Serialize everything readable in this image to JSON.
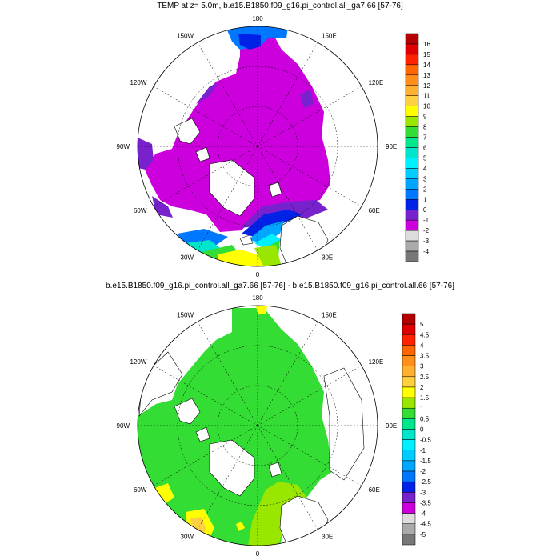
{
  "panels": [
    {
      "title": "TEMP at z=   5.0m, b.e15.B1850.f09_g16.pi_control.all_ga7.66 [57-76]",
      "lon_labels": [
        "180",
        "150E",
        "120E",
        "90E",
        "60E",
        "30E",
        "0",
        "30W",
        "60W",
        "90W",
        "120W",
        "150W"
      ],
      "colorbar": {
        "labels": [
          "16",
          "15",
          "14",
          "13",
          "12",
          "11",
          "10",
          "9",
          "8",
          "7",
          "6",
          "5",
          "4",
          "3",
          "2",
          "1",
          "0",
          "-1",
          "-2",
          "-3",
          "-4"
        ],
        "colors": [
          "#b40000",
          "#de0000",
          "#ff2200",
          "#ff6600",
          "#ff8f1a",
          "#ffb030",
          "#ffd040",
          "#ffff00",
          "#99e600",
          "#33dd33",
          "#00e68c",
          "#00e6cc",
          "#00f0ff",
          "#00ccff",
          "#00a6ff",
          "#0077ff",
          "#0022e6",
          "#7722cc",
          "#cc00dd",
          "#dddddd",
          "#aaaaaa",
          "#777777"
        ]
      }
    },
    {
      "title": "b.e15.B1850.f09_g16.pi_control.all_ga7.66 [57-76] - b.e15.B1850.f09_g16.pi_control.all.66 [57-76]",
      "lon_labels": [
        "180",
        "150E",
        "120E",
        "90E",
        "60E",
        "30E",
        "0",
        "30W",
        "60W",
        "90W",
        "120W",
        "150W"
      ],
      "colorbar": {
        "labels": [
          "5",
          "4.5",
          "4",
          "3.5",
          "3",
          "2.5",
          "2",
          "1.5",
          "1",
          "0.5",
          "0",
          "-0.5",
          "-1",
          "-1.5",
          "-2",
          "-2.5",
          "-3",
          "-3.5",
          "-4",
          "-4.5",
          "-5"
        ],
        "colors": [
          "#b40000",
          "#de0000",
          "#ff2200",
          "#ff6600",
          "#ff8f1a",
          "#ffb030",
          "#ffd040",
          "#ffff00",
          "#99e600",
          "#33dd33",
          "#00e68c",
          "#00e6cc",
          "#00f0ff",
          "#00ccff",
          "#00a6ff",
          "#0077ff",
          "#0022e6",
          "#7722cc",
          "#cc00dd",
          "#dddddd",
          "#aaaaaa",
          "#777777"
        ]
      }
    }
  ]
}
